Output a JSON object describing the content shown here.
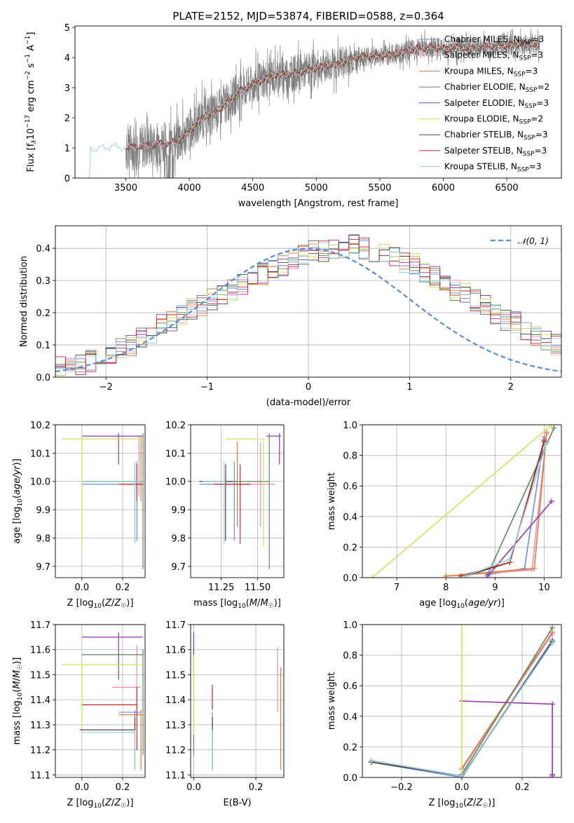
{
  "colors": {
    "Chabrier MILES": "#6a8fe0",
    "Salpeter MILES": "#f08cb4",
    "Kroupa MILES": "#e07b39",
    "Chabrier ELODIE": "#5a8a5a",
    "Salpeter ELODIE": "#9b30b0",
    "Kroupa ELODIE": "#d4e157",
    "Chabrier STELIB": "#444444",
    "Salpeter STELIB": "#c62828",
    "Kroupa STELIB": "#8fd3d8",
    "data": "#808080",
    "normal": "#5b8be0",
    "grid": "#b0b0b0"
  },
  "chart_data": [
    {
      "id": "spectrum",
      "type": "line",
      "title": "PLATE=2152, MJD=53874, FIBERID=0588, z=0.364",
      "xlabel": "wavelength [Angstrom, rest frame]",
      "ylabel": "Flux [f_λ 10^-17 erg cm^-2 s^-1 A^-1]",
      "xlim": [
        3100,
        6930
      ],
      "ylim": [
        0,
        5.05
      ],
      "xticks": [
        3500,
        4000,
        4500,
        5000,
        5500,
        6000,
        6500
      ],
      "yticks": [
        0,
        1,
        2,
        3,
        4,
        5
      ],
      "grid": false,
      "legend_position": "upper-right",
      "legend": [
        {
          "name": "Chabrier MILES",
          "sub": "3"
        },
        {
          "name": "Salpeter MILES",
          "sub": "3"
        },
        {
          "name": "Kroupa MILES",
          "sub": "3"
        },
        {
          "name": "Chabrier ELODIE",
          "sub": "2"
        },
        {
          "name": "Salpeter ELODIE",
          "sub": "3"
        },
        {
          "name": "Kroupa ELODIE",
          "sub": "2"
        },
        {
          "name": "Chabrier STELIB",
          "sub": "3"
        },
        {
          "name": "Salpeter STELIB",
          "sub": "3"
        },
        {
          "name": "Kroupa STELIB",
          "sub": "3"
        }
      ],
      "model_continuum": {
        "x": [
          3220,
          3400,
          3500,
          3600,
          3700,
          3800,
          3900,
          4000,
          4100,
          4200,
          4300,
          4400,
          4500,
          4600,
          4700,
          4800,
          4900,
          5000,
          5100,
          5200,
          5300,
          5400,
          5500,
          5600,
          5700,
          5800,
          5900,
          6000,
          6100,
          6200,
          6300,
          6400,
          6500,
          6600,
          6750
        ],
        "y": [
          0.95,
          1.05,
          1.0,
          1.05,
          1.1,
          1.15,
          1.2,
          1.55,
          2.0,
          2.15,
          2.5,
          2.9,
          3.1,
          3.3,
          3.45,
          3.45,
          3.55,
          3.65,
          3.75,
          3.8,
          4.0,
          4.05,
          4.05,
          4.1,
          4.2,
          4.3,
          4.35,
          4.3,
          4.35,
          4.3,
          4.35,
          4.4,
          4.4,
          4.45,
          4.45
        ]
      },
      "data_range": [
        3500,
        6760
      ]
    },
    {
      "id": "residuals",
      "type": "line",
      "xlabel": "(data-model)/error",
      "ylabel": "Normed distribution",
      "xlim": [
        -2.5,
        2.5
      ],
      "ylim": [
        0,
        0.47
      ],
      "xticks": [
        -2,
        -1,
        0,
        1,
        2
      ],
      "yticks": [
        0.0,
        0.1,
        0.2,
        0.3,
        0.4
      ],
      "grid": true,
      "legend": "𝒩(0, 1)",
      "legend_position": "upper-right",
      "bin_width": 0.1,
      "hist_base": [
        0.03,
        0.03,
        0.04,
        0.05,
        0.06,
        0.07,
        0.09,
        0.1,
        0.12,
        0.14,
        0.16,
        0.17,
        0.19,
        0.21,
        0.22,
        0.24,
        0.26,
        0.27,
        0.29,
        0.3,
        0.32,
        0.34,
        0.35,
        0.37,
        0.38,
        0.39,
        0.39,
        0.4,
        0.4,
        0.41,
        0.4,
        0.39,
        0.39,
        0.38,
        0.36,
        0.35,
        0.33,
        0.31,
        0.29,
        0.27,
        0.26,
        0.24,
        0.22,
        0.2,
        0.18,
        0.17,
        0.15,
        0.13,
        0.11,
        0.1,
        0.08
      ]
    },
    {
      "id": "age_vs_Z",
      "type": "scatter",
      "xlabel": "Z [log10(Z/Z☉)]",
      "ylabel": "age  [log10(age/yr)]",
      "xlim": [
        -0.13,
        0.31
      ],
      "ylim": [
        9.66,
        10.2
      ],
      "xticks": [
        0.0,
        0.2
      ],
      "yticks": [
        9.7,
        9.8,
        9.9,
        10.0,
        10.1,
        10.2
      ],
      "grid": true,
      "points": [
        {
          "model": "Chabrier MILES",
          "x": 0.27,
          "xlo": 0.0,
          "xhi": 0.29,
          "y": 9.99,
          "ylo": 9.79,
          "yhi": 10.07
        },
        {
          "model": "Salpeter MILES",
          "x": 0.28,
          "xlo": 0.18,
          "xhi": 0.3,
          "y": 9.99,
          "ylo": 9.95,
          "yhi": 10.16
        },
        {
          "model": "Kroupa MILES",
          "x": 0.29,
          "xlo": 0.05,
          "xhi": 0.3,
          "y": 10.0,
          "ylo": 9.93,
          "yhi": 10.16
        },
        {
          "model": "Chabrier ELODIE",
          "x": 0.3,
          "xlo": 0.0,
          "xhi": 0.3,
          "y": 10.0,
          "ylo": 9.69,
          "yhi": 10.17
        },
        {
          "model": "Salpeter ELODIE",
          "x": 0.18,
          "xlo": 0.0,
          "xhi": 0.3,
          "y": 10.16,
          "ylo": 10.06,
          "yhi": 10.17
        },
        {
          "model": "Kroupa ELODIE",
          "x": 0.0,
          "xlo": -0.1,
          "xhi": 0.3,
          "y": 10.15,
          "ylo": 9.77,
          "yhi": 10.16
        },
        {
          "model": "Chabrier STELIB",
          "x": 0.26,
          "xlo": 0.0,
          "xhi": 0.3,
          "y": 10.0,
          "ylo": 9.79,
          "yhi": 10.06
        },
        {
          "model": "Salpeter STELIB",
          "x": 0.27,
          "xlo": 0.18,
          "xhi": 0.3,
          "y": 9.99,
          "ylo": 9.93,
          "yhi": 10.06
        },
        {
          "model": "Kroupa STELIB",
          "x": 0.26,
          "xlo": 0.0,
          "xhi": 0.3,
          "y": 10.0,
          "ylo": 9.78,
          "yhi": 10.07
        }
      ]
    },
    {
      "id": "age_vs_mass",
      "type": "scatter",
      "xlabel": "mass [log10(M/M☉)]",
      "ylabel": "",
      "xlim": [
        11.04,
        11.68
      ],
      "ylim": [
        9.66,
        10.2
      ],
      "xticks": [
        11.25,
        11.5
      ],
      "yticks": [
        9.7,
        9.8,
        9.9,
        10.0,
        10.1,
        10.2
      ],
      "grid": true,
      "points": [
        {
          "model": "Chabrier MILES",
          "x": 11.34,
          "xlo": 11.1,
          "xhi": 11.35,
          "y": 9.99,
          "ylo": 9.79,
          "yhi": 10.07
        },
        {
          "model": "Salpeter MILES",
          "x": 11.52,
          "xlo": 11.35,
          "xhi": 11.62,
          "y": 9.99,
          "ylo": 9.84,
          "yhi": 10.14
        },
        {
          "model": "Kroupa MILES",
          "x": 11.36,
          "xlo": 11.12,
          "xhi": 11.36,
          "y": 10.0,
          "ylo": 9.84,
          "yhi": 10.14
        },
        {
          "model": "Chabrier ELODIE",
          "x": 11.58,
          "xlo": 11.18,
          "xhi": 11.58,
          "y": 10.0,
          "ylo": 9.69,
          "yhi": 10.17
        },
        {
          "model": "Salpeter ELODIE",
          "x": 11.65,
          "xlo": 11.56,
          "xhi": 11.66,
          "y": 10.16,
          "ylo": 10.06,
          "yhi": 10.17
        },
        {
          "model": "Kroupa ELODIE",
          "x": 11.54,
          "xlo": 11.28,
          "xhi": 11.55,
          "y": 10.15,
          "ylo": 9.77,
          "yhi": 10.15
        },
        {
          "model": "Chabrier STELIB",
          "x": 11.28,
          "xlo": 11.1,
          "xhi": 11.33,
          "y": 10.0,
          "ylo": 9.79,
          "yhi": 10.06
        },
        {
          "model": "Salpeter STELIB",
          "x": 11.38,
          "xlo": 11.2,
          "xhi": 11.45,
          "y": 9.99,
          "ylo": 9.78,
          "yhi": 10.06
        },
        {
          "model": "Kroupa STELIB",
          "x": 11.27,
          "xlo": 11.12,
          "xhi": 11.28,
          "y": 10.0,
          "ylo": 9.78,
          "yhi": 10.07
        }
      ]
    },
    {
      "id": "mass_weight_vs_age",
      "type": "line",
      "xlabel": "age  [log10(age/yr)]",
      "ylabel": "mass weight",
      "xlim": [
        6.3,
        10.35
      ],
      "ylim": [
        0,
        1.0
      ],
      "xticks": [
        7,
        8,
        9,
        10
      ],
      "yticks": [
        0.0,
        0.2,
        0.4,
        0.6,
        0.8,
        1.0
      ],
      "grid": true,
      "series": [
        {
          "model": "Chabrier MILES",
          "x": [
            8.85,
            9.6,
            10.0
          ],
          "y": [
            0.02,
            0.06,
            0.92
          ]
        },
        {
          "model": "Salpeter MILES",
          "x": [
            8.0,
            9.75,
            10.05
          ],
          "y": [
            0.01,
            0.05,
            0.94
          ]
        },
        {
          "model": "Kroupa MILES",
          "x": [
            8.0,
            9.8,
            10.05
          ],
          "y": [
            0.01,
            0.06,
            0.95
          ]
        },
        {
          "model": "Chabrier ELODIE",
          "x": [
            8.85,
            10.2
          ],
          "y": [
            0.02,
            0.98
          ]
        },
        {
          "model": "Salpeter ELODIE",
          "x": [
            8.85,
            10.15
          ],
          "y": [
            0.01,
            0.5
          ]
        },
        {
          "model": "Kroupa ELODIE",
          "x": [
            6.5,
            10.15
          ],
          "y": [
            0.0,
            1.0
          ]
        },
        {
          "model": "Chabrier STELIB",
          "x": [
            8.4,
            9.3,
            10.0
          ],
          "y": [
            0.01,
            0.1,
            0.89
          ]
        },
        {
          "model": "Salpeter STELIB",
          "x": [
            8.3,
            9.3,
            10.0
          ],
          "y": [
            0.01,
            0.1,
            0.9
          ]
        },
        {
          "model": "Kroupa STELIB",
          "x": [
            8.4,
            9.3,
            10.05
          ],
          "y": [
            0.01,
            0.12,
            0.88
          ]
        }
      ]
    },
    {
      "id": "mass_vs_Z",
      "type": "scatter",
      "xlabel": "Z [log10(Z/Z☉)]",
      "ylabel": "mass [log10(M/M☉)]",
      "xlim": [
        -0.13,
        0.31
      ],
      "ylim": [
        11.09,
        11.7
      ],
      "xticks": [
        0.0,
        0.2
      ],
      "yticks": [
        11.1,
        11.2,
        11.3,
        11.4,
        11.5,
        11.6,
        11.7
      ],
      "grid": true,
      "points": [
        {
          "model": "Chabrier MILES",
          "x": 0.26,
          "xlo": 0.18,
          "xhi": 0.29,
          "y": 11.35,
          "ylo": 11.12,
          "yhi": 11.36
        },
        {
          "model": "Salpeter MILES",
          "x": 0.27,
          "xlo": 0.15,
          "xhi": 0.29,
          "y": 11.45,
          "ylo": 11.35,
          "yhi": 11.62
        },
        {
          "model": "Kroupa MILES",
          "x": 0.29,
          "xlo": 0.18,
          "xhi": 0.3,
          "y": 11.34,
          "ylo": 11.12,
          "yhi": 11.36
        },
        {
          "model": "Chabrier ELODIE",
          "x": 0.3,
          "xlo": 0.0,
          "xhi": 0.3,
          "y": 11.58,
          "ylo": 11.18,
          "yhi": 11.6
        },
        {
          "model": "Salpeter ELODIE",
          "x": 0.18,
          "xlo": 0.0,
          "xhi": 0.3,
          "y": 11.65,
          "ylo": 11.48,
          "yhi": 11.67
        },
        {
          "model": "Kroupa ELODIE",
          "x": 0.0,
          "xlo": -0.1,
          "xhi": 0.3,
          "y": 11.54,
          "ylo": 11.28,
          "yhi": 11.55
        },
        {
          "model": "Chabrier STELIB",
          "x": 0.26,
          "xlo": -0.01,
          "xhi": 0.26,
          "y": 11.28,
          "ylo": 11.12,
          "yhi": 11.33
        },
        {
          "model": "Salpeter STELIB",
          "x": 0.27,
          "xlo": 0.0,
          "xhi": 0.27,
          "y": 11.38,
          "ylo": 11.2,
          "yhi": 11.45
        },
        {
          "model": "Kroupa STELIB",
          "x": 0.26,
          "xlo": 0.0,
          "xhi": 0.26,
          "y": 11.27,
          "ylo": 11.12,
          "yhi": 11.28
        }
      ]
    },
    {
      "id": "mass_vs_ebv",
      "type": "scatter",
      "xlabel": "E(B-V)",
      "ylabel": "",
      "xlim": [
        -0.01,
        0.29
      ],
      "ylim": [
        11.09,
        11.7
      ],
      "xticks": [
        0.0,
        0.2
      ],
      "yticks": [
        11.1,
        11.2,
        11.3,
        11.4,
        11.5,
        11.6,
        11.7
      ],
      "grid": true,
      "points": [
        {
          "model": "Chabrier MILES",
          "x": 0.06,
          "ylo": 11.12,
          "yhi": 11.35
        },
        {
          "model": "Salpeter MILES",
          "x": 0.27,
          "ylo": 11.35,
          "yhi": 11.61
        },
        {
          "model": "Kroupa MILES",
          "x": 0.28,
          "ylo": 11.12,
          "yhi": 11.53
        },
        {
          "model": "Chabrier ELODIE",
          "x": 0.0,
          "ylo": 11.18,
          "yhi": 11.6
        },
        {
          "model": "Salpeter ELODIE",
          "x": 0.0,
          "ylo": 11.48,
          "yhi": 11.67
        },
        {
          "model": "Kroupa ELODIE",
          "x": 0.0,
          "ylo": 11.26,
          "yhi": 11.58
        },
        {
          "model": "Chabrier STELIB",
          "x": 0.06,
          "ylo": 11.12,
          "yhi": 11.33
        },
        {
          "model": "Salpeter STELIB",
          "x": 0.06,
          "ylo": 11.36,
          "yhi": 11.46
        },
        {
          "model": "Kroupa STELIB",
          "x": 0.06,
          "ylo": 11.12,
          "yhi": 11.28
        }
      ]
    },
    {
      "id": "mass_weight_vs_Z",
      "type": "line",
      "xlabel": "Z [log10(Z/Z☉)]",
      "ylabel": "mass weight",
      "xlim": [
        -0.33,
        0.33
      ],
      "ylim": [
        0,
        1.0
      ],
      "xticks": [
        -0.2,
        0.0,
        0.2
      ],
      "yticks": [
        0.0,
        0.2,
        0.4,
        0.6,
        0.8,
        1.0
      ],
      "grid": true,
      "series": [
        {
          "model": "Chabrier MILES",
          "x": [
            -0.3,
            0.0,
            0.3
          ],
          "y": [
            0.1,
            0.0,
            0.9
          ]
        },
        {
          "model": "Salpeter MILES",
          "x": [
            0.0,
            0.3
          ],
          "y": [
            0.05,
            0.94
          ]
        },
        {
          "model": "Kroupa MILES",
          "x": [
            0.0,
            0.3
          ],
          "y": [
            0.06,
            0.95
          ]
        },
        {
          "model": "Chabrier ELODIE",
          "x": [
            0.0,
            0.3
          ],
          "y": [
            0.02,
            0.98
          ]
        },
        {
          "model": "Salpeter ELODIE",
          "x": [
            0.0,
            0.3,
            0.3,
            0.3
          ],
          "y": [
            0.5,
            0.48,
            0.02,
            0.01
          ]
        },
        {
          "model": "Kroupa ELODIE",
          "x": [
            0.0,
            0.0
          ],
          "y": [
            0.0,
            1.0
          ]
        },
        {
          "model": "Chabrier STELIB",
          "x": [
            -0.3,
            0.0,
            0.3
          ],
          "y": [
            0.1,
            0.01,
            0.89
          ]
        },
        {
          "model": "Salpeter STELIB",
          "x": [
            -0.3,
            0.0,
            0.3
          ],
          "y": [
            0.11,
            0.01,
            0.88
          ]
        },
        {
          "model": "Kroupa STELIB",
          "x": [
            -0.3,
            0.0,
            0.3
          ],
          "y": [
            0.11,
            0.01,
            0.88
          ]
        }
      ]
    }
  ]
}
